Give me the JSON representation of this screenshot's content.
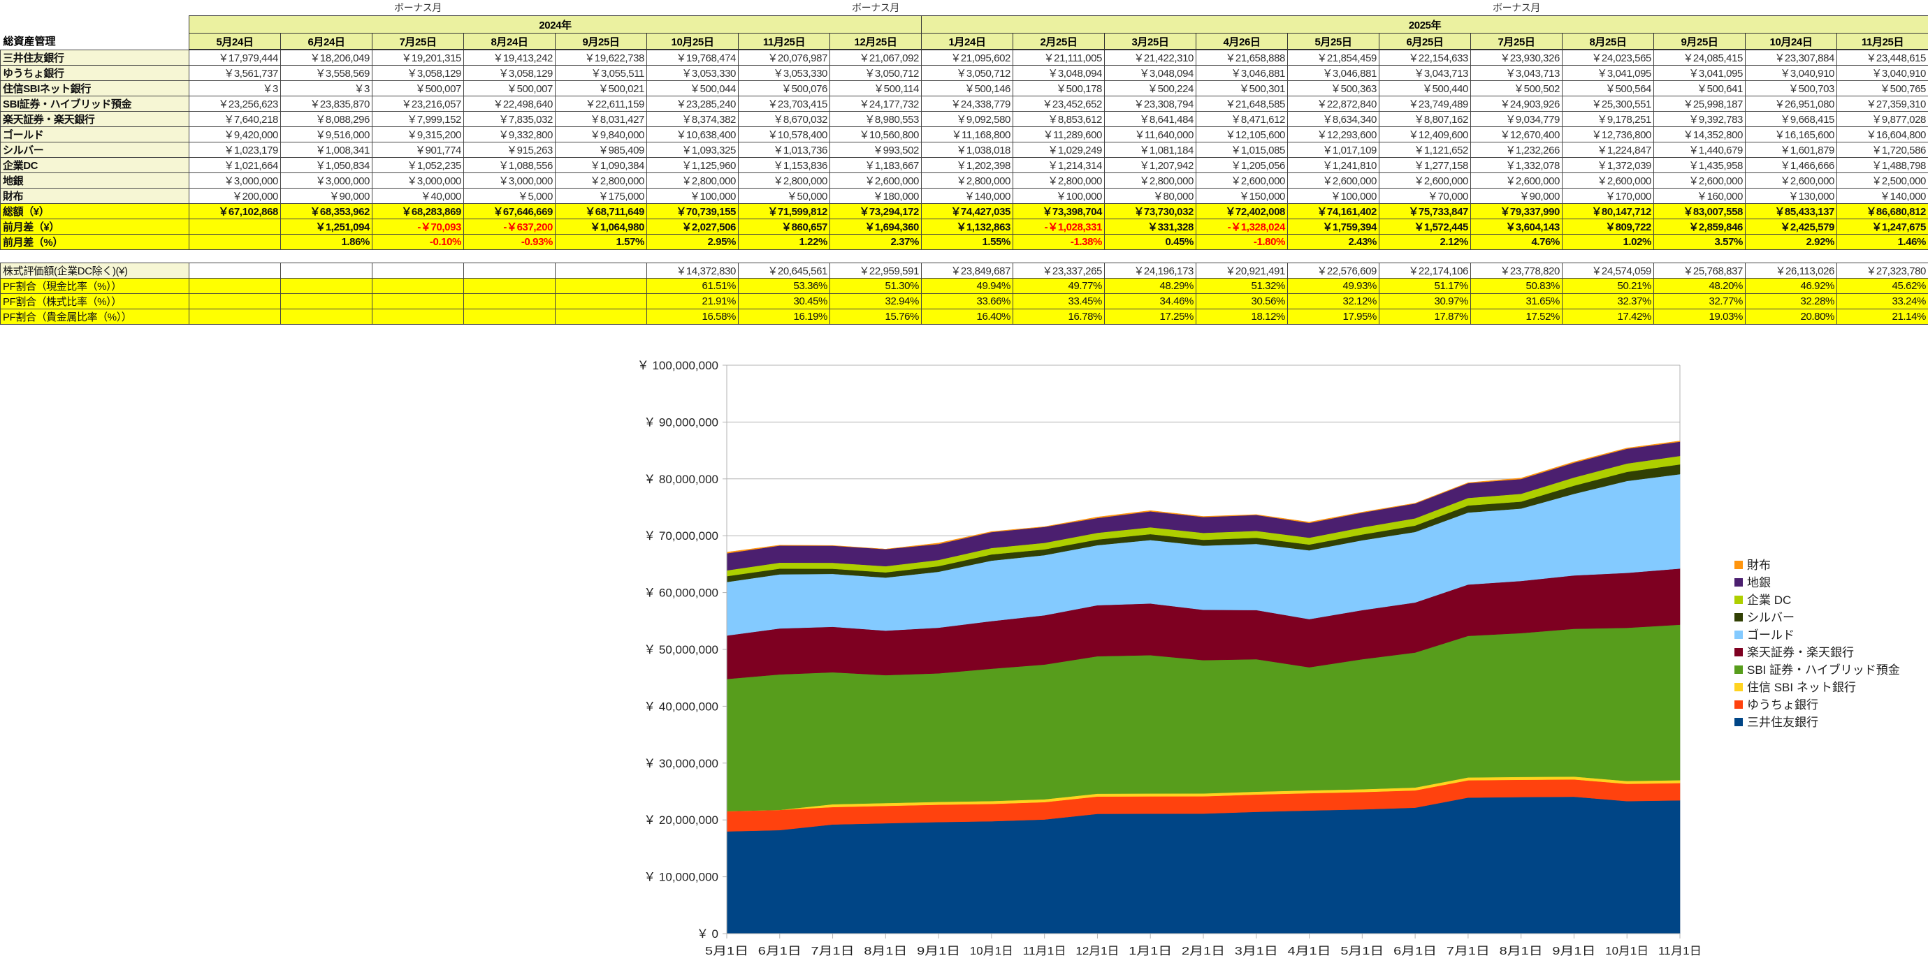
{
  "header": {
    "title": "総資産管理",
    "bonus_row": [
      "",
      "",
      "ボーナス月",
      "",
      "",
      "",
      "",
      "ボーナス月",
      "",
      "",
      "",
      "",
      "",
      "",
      "ボーナス月",
      "",
      "",
      "",
      ""
    ],
    "years": [
      {
        "label": "2024年",
        "span": 8
      },
      {
        "label": "2025年",
        "span": 11
      }
    ],
    "dates": [
      "5月24日",
      "6月24日",
      "7月25日",
      "8月24日",
      "9月25日",
      "10月25日",
      "11月25日",
      "12月25日",
      "1月24日",
      "2月25日",
      "3月25日",
      "4月26日",
      "5月25日",
      "6月25日",
      "7月25日",
      "8月25日",
      "9月25日",
      "10月24日",
      "11月25日"
    ]
  },
  "table": {
    "rows": [
      {
        "label": "三井住友銀行",
        "style": "normal",
        "values": [
          "￥17,979,444",
          "￥18,206,049",
          "￥19,201,315",
          "￥19,413,242",
          "￥19,622,738",
          "￥19,768,474",
          "￥20,076,987",
          "￥21,067,092",
          "￥21,095,602",
          "￥21,111,005",
          "￥21,422,310",
          "￥21,658,888",
          "￥21,854,459",
          "￥22,154,633",
          "￥23,930,326",
          "￥24,023,565",
          "￥24,085,415",
          "￥23,307,884",
          "￥23,448,615"
        ]
      },
      {
        "label": "ゆうちょ銀行",
        "style": "normal",
        "values": [
          "￥3,561,737",
          "￥3,558,569",
          "￥3,058,129",
          "￥3,058,129",
          "￥3,055,511",
          "￥3,053,330",
          "￥3,053,330",
          "￥3,050,712",
          "￥3,050,712",
          "￥3,048,094",
          "￥3,048,094",
          "￥3,046,881",
          "￥3,046,881",
          "￥3,043,713",
          "￥3,043,713",
          "￥3,041,095",
          "￥3,041,095",
          "￥3,040,910",
          "￥3,040,910"
        ]
      },
      {
        "label": "住信SBIネット銀行",
        "style": "normal",
        "values": [
          "￥3",
          "￥3",
          "￥500,007",
          "￥500,007",
          "￥500,021",
          "￥500,044",
          "￥500,076",
          "￥500,114",
          "￥500,146",
          "￥500,178",
          "￥500,224",
          "￥500,301",
          "￥500,363",
          "￥500,440",
          "￥500,502",
          "￥500,564",
          "￥500,641",
          "￥500,703",
          "￥500,765"
        ]
      },
      {
        "label": "SBI証券・ハイブリッド預金",
        "style": "normal",
        "values": [
          "￥23,256,623",
          "￥23,835,870",
          "￥23,216,057",
          "￥22,498,640",
          "￥22,611,159",
          "￥23,285,240",
          "￥23,703,415",
          "￥24,177,732",
          "￥24,338,779",
          "￥23,452,652",
          "￥23,308,794",
          "￥21,648,585",
          "￥22,872,840",
          "￥23,749,489",
          "￥24,903,926",
          "￥25,300,551",
          "￥25,998,187",
          "￥26,951,080",
          "￥27,359,310"
        ]
      },
      {
        "label": "楽天証券・楽天銀行",
        "style": "normal",
        "values": [
          "￥7,640,218",
          "￥8,088,296",
          "￥7,999,152",
          "￥7,835,032",
          "￥8,031,427",
          "￥8,374,382",
          "￥8,670,032",
          "￥8,980,553",
          "￥9,092,580",
          "￥8,853,612",
          "￥8,641,484",
          "￥8,471,612",
          "￥8,634,340",
          "￥8,807,162",
          "￥9,034,779",
          "￥9,178,251",
          "￥9,392,783",
          "￥9,668,415",
          "￥9,877,028"
        ]
      },
      {
        "label": "ゴールド",
        "style": "normal",
        "values": [
          "￥9,420,000",
          "￥9,516,000",
          "￥9,315,200",
          "￥9,332,800",
          "￥9,840,000",
          "￥10,638,400",
          "￥10,578,400",
          "￥10,560,800",
          "￥11,168,800",
          "￥11,289,600",
          "￥11,640,000",
          "￥12,105,600",
          "￥12,293,600",
          "￥12,409,600",
          "￥12,670,400",
          "￥12,736,800",
          "￥14,352,800",
          "￥16,165,600",
          "￥16,604,800"
        ]
      },
      {
        "label": "シルバー",
        "style": "normal",
        "values": [
          "￥1,023,179",
          "￥1,008,341",
          "￥901,774",
          "￥915,263",
          "￥985,409",
          "￥1,093,325",
          "￥1,013,736",
          "￥993,502",
          "￥1,038,018",
          "￥1,029,249",
          "￥1,081,184",
          "￥1,015,085",
          "￥1,017,109",
          "￥1,121,652",
          "￥1,232,266",
          "￥1,224,847",
          "￥1,440,679",
          "￥1,601,879",
          "￥1,720,586"
        ]
      },
      {
        "label": "企業DC",
        "style": "normal",
        "values": [
          "￥1,021,664",
          "￥1,050,834",
          "￥1,052,235",
          "￥1,088,556",
          "￥1,090,384",
          "￥1,125,960",
          "￥1,153,836",
          "￥1,183,667",
          "￥1,202,398",
          "￥1,214,314",
          "￥1,207,942",
          "￥1,205,056",
          "￥1,241,810",
          "￥1,277,158",
          "￥1,332,078",
          "￥1,372,039",
          "￥1,435,958",
          "￥1,466,666",
          "￥1,488,798"
        ]
      },
      {
        "label": "地銀",
        "style": "normal",
        "values": [
          "￥3,000,000",
          "￥3,000,000",
          "￥3,000,000",
          "￥3,000,000",
          "￥2,800,000",
          "￥2,800,000",
          "￥2,800,000",
          "￥2,600,000",
          "￥2,800,000",
          "￥2,800,000",
          "￥2,800,000",
          "￥2,600,000",
          "￥2,600,000",
          "￥2,600,000",
          "￥2,600,000",
          "￥2,600,000",
          "￥2,600,000",
          "￥2,600,000",
          "￥2,500,000"
        ]
      },
      {
        "label": "財布",
        "style": "normal",
        "values": [
          "￥200,000",
          "￥90,000",
          "￥40,000",
          "￥5,000",
          "￥175,000",
          "￥100,000",
          "￥50,000",
          "￥180,000",
          "￥140,000",
          "￥100,000",
          "￥80,000",
          "￥150,000",
          "￥100,000",
          "￥70,000",
          "￥90,000",
          "￥170,000",
          "￥160,000",
          "￥130,000",
          "￥140,000"
        ]
      },
      {
        "label": "総額（¥）",
        "style": "total",
        "values": [
          "￥67,102,868",
          "￥68,353,962",
          "￥68,283,869",
          "￥67,646,669",
          "￥68,711,649",
          "￥70,739,155",
          "￥71,599,812",
          "￥73,294,172",
          "￥74,427,035",
          "￥73,398,704",
          "￥73,730,032",
          "￥72,402,008",
          "￥74,161,402",
          "￥75,733,847",
          "￥79,337,990",
          "￥80,147,712",
          "￥83,007,558",
          "￥85,433,137",
          "￥86,680,812"
        ]
      },
      {
        "label": "前月差（¥）",
        "style": "total",
        "values": [
          "",
          "￥1,251,094",
          "-￥70,093",
          "-￥637,200",
          "￥1,064,980",
          "￥2,027,506",
          "￥860,657",
          "￥1,694,360",
          "￥1,132,863",
          "-￥1,028,331",
          "￥331,328",
          "-￥1,328,024",
          "￥1,759,394",
          "￥1,572,445",
          "￥3,604,143",
          "￥809,722",
          "￥2,859,846",
          "￥2,425,579",
          "￥1,247,675"
        ]
      },
      {
        "label": "前月差（%）",
        "style": "total",
        "values": [
          "",
          "1.86%",
          "-0.10%",
          "-0.93%",
          "1.57%",
          "2.95%",
          "1.22%",
          "2.37%",
          "1.55%",
          "-1.38%",
          "0.45%",
          "-1.80%",
          "2.43%",
          "2.12%",
          "4.76%",
          "1.02%",
          "3.57%",
          "2.92%",
          "1.46%"
        ]
      }
    ]
  },
  "table2": {
    "rows": [
      {
        "label": "株式評価額(企業DC除く)(¥)",
        "style": "plain",
        "values": [
          "",
          "",
          "",
          "",
          "",
          "￥14,372,830",
          "￥20,645,561",
          "￥22,959,591",
          "￥23,849,687",
          "￥23,337,265",
          "￥24,196,173",
          "￥20,921,491",
          "￥22,576,609",
          "￥22,174,106",
          "￥23,778,820",
          "￥24,574,059",
          "￥25,768,837",
          "￥26,113,026",
          "￥27,323,780"
        ]
      },
      {
        "label": "PF割合（現金比率（%））",
        "style": "pf",
        "values": [
          "",
          "",
          "",
          "",
          "",
          "61.51%",
          "53.36%",
          "51.30%",
          "49.94%",
          "49.77%",
          "48.29%",
          "51.32%",
          "49.93%",
          "51.17%",
          "50.83%",
          "50.21%",
          "48.20%",
          "46.92%",
          "45.62%"
        ]
      },
      {
        "label": "PF割合（株式比率（%））",
        "style": "pf",
        "values": [
          "",
          "",
          "",
          "",
          "",
          "21.91%",
          "30.45%",
          "32.94%",
          "33.66%",
          "33.45%",
          "34.46%",
          "30.56%",
          "32.12%",
          "30.97%",
          "31.65%",
          "32.37%",
          "32.77%",
          "32.28%",
          "33.24%"
        ]
      },
      {
        "label": "PF割合（貴金属比率（%））",
        "style": "pf",
        "values": [
          "",
          "",
          "",
          "",
          "",
          "16.58%",
          "16.19%",
          "15.76%",
          "16.40%",
          "16.78%",
          "17.25%",
          "18.12%",
          "17.95%",
          "17.87%",
          "17.52%",
          "17.42%",
          "19.03%",
          "20.80%",
          "21.14%"
        ]
      }
    ]
  },
  "chart_data": {
    "type": "area",
    "stacked": true,
    "title": "",
    "xlabel": "",
    "ylabel": "",
    "ylim": [
      0,
      100000000
    ],
    "grid": true,
    "legend_position": "right",
    "x_labels": [
      "5月1日",
      "6月1日",
      "7月1日",
      "8月1日",
      "9月1日",
      "10月1日",
      "11月1日",
      "12月1日",
      "1月1日",
      "2月1日",
      "3月1日",
      "4月1日",
      "5月1日",
      "6月1日",
      "7月1日",
      "8月1日",
      "9月1日",
      "10月1日",
      "11月1日"
    ],
    "y_ticks": [
      {
        "value": 0,
        "label": "￥ 0"
      },
      {
        "value": 10000000,
        "label": "￥ 10,000,000"
      },
      {
        "value": 20000000,
        "label": "￥ 20,000,000"
      },
      {
        "value": 30000000,
        "label": "￥ 30,000,000"
      },
      {
        "value": 40000000,
        "label": "￥ 40,000,000"
      },
      {
        "value": 50000000,
        "label": "￥ 50,000,000"
      },
      {
        "value": 60000000,
        "label": "￥ 60,000,000"
      },
      {
        "value": 70000000,
        "label": "￥ 70,000,000"
      },
      {
        "value": 80000000,
        "label": "￥ 80,000,000"
      },
      {
        "value": 90000000,
        "label": "￥ 90,000,000"
      },
      {
        "value": 100000000,
        "label": "￥ 100,000,000"
      }
    ],
    "series": [
      {
        "name": "三井住友銀行",
        "color": "#004586",
        "values": [
          17979444,
          18206049,
          19201315,
          19413242,
          19622738,
          19768474,
          20076987,
          21067092,
          21095602,
          21111005,
          21422310,
          21658888,
          21854459,
          22154633,
          23930326,
          24023565,
          24085415,
          23307884,
          23448615
        ]
      },
      {
        "name": "ゆうちょ銀行",
        "color": "#ff420e",
        "values": [
          3561737,
          3558569,
          3058129,
          3058129,
          3055511,
          3053330,
          3053330,
          3050712,
          3050712,
          3048094,
          3048094,
          3046881,
          3046881,
          3043713,
          3043713,
          3041095,
          3041095,
          3040910,
          3040910
        ]
      },
      {
        "name": "住信 SBI ネット銀行",
        "color": "#ffd320",
        "values": [
          3,
          3,
          500007,
          500007,
          500021,
          500044,
          500076,
          500114,
          500146,
          500178,
          500224,
          500301,
          500363,
          500440,
          500502,
          500564,
          500641,
          500703,
          500765
        ]
      },
      {
        "name": "SBI 証券・ハイブリッド預金",
        "color": "#579d1c",
        "values": [
          23256623,
          23835870,
          23216057,
          22498640,
          22611159,
          23285240,
          23703415,
          24177732,
          24338779,
          23452652,
          23308794,
          21648585,
          22872840,
          23749489,
          24903926,
          25300551,
          25998187,
          26951080,
          27359310
        ]
      },
      {
        "name": "楽天証券・楽天銀行",
        "color": "#7e0021",
        "values": [
          7640218,
          8088296,
          7999152,
          7835032,
          8031427,
          8374382,
          8670032,
          8980553,
          9092580,
          8853612,
          8641484,
          8471612,
          8634340,
          8807162,
          9034779,
          9178251,
          9392783,
          9668415,
          9877028
        ]
      },
      {
        "name": "ゴールド",
        "color": "#83caff",
        "values": [
          9420000,
          9516000,
          9315200,
          9332800,
          9840000,
          10638400,
          10578400,
          10560800,
          11168800,
          11289600,
          11640000,
          12105600,
          12293600,
          12409600,
          12670400,
          12736800,
          14352800,
          16165600,
          16604800
        ]
      },
      {
        "name": "シルバー",
        "color": "#314004",
        "values": [
          1023179,
          1008341,
          901774,
          915263,
          985409,
          1093325,
          1013736,
          993502,
          1038018,
          1029249,
          1081184,
          1015085,
          1017109,
          1121652,
          1232266,
          1224847,
          1440679,
          1601879,
          1720586
        ]
      },
      {
        "name": "企業 DC",
        "color": "#aecf00",
        "values": [
          1021664,
          1050834,
          1052235,
          1088556,
          1090384,
          1125960,
          1153836,
          1183667,
          1202398,
          1214314,
          1207942,
          1205056,
          1241810,
          1277158,
          1332078,
          1372039,
          1435958,
          1466666,
          1488798
        ]
      },
      {
        "name": "地銀",
        "color": "#4b1f6f",
        "values": [
          3000000,
          3000000,
          3000000,
          3000000,
          2800000,
          2800000,
          2800000,
          2600000,
          2800000,
          2800000,
          2800000,
          2600000,
          2600000,
          2600000,
          2600000,
          2600000,
          2600000,
          2600000,
          2500000
        ]
      },
      {
        "name": "財布",
        "color": "#ff950e",
        "values": [
          200000,
          90000,
          40000,
          5000,
          175000,
          100000,
          50000,
          180000,
          140000,
          100000,
          80000,
          150000,
          100000,
          70000,
          90000,
          170000,
          160000,
          130000,
          140000
        ]
      }
    ]
  }
}
